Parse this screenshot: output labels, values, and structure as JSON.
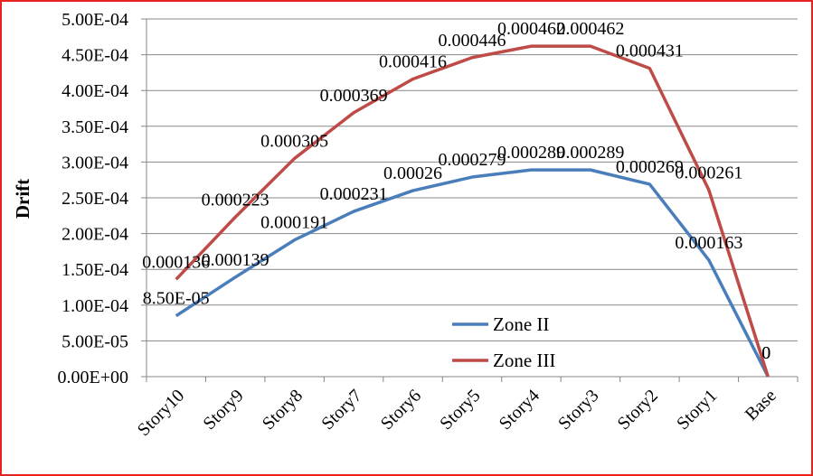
{
  "chart_data": {
    "type": "line",
    "title": "",
    "xlabel": "",
    "ylabel": "Drift",
    "ylim": [
      0,
      0.0005
    ],
    "y_ticks": [
      "0.00E+00",
      "5.00E-05",
      "1.00E-04",
      "1.50E-04",
      "2.00E-04",
      "2.50E-04",
      "3.00E-04",
      "3.50E-04",
      "4.00E-04",
      "4.50E-04",
      "5.00E-04"
    ],
    "categories": [
      "Story10",
      "Story9",
      "Story8",
      "Story7",
      "Story6",
      "Story5",
      "Story4",
      "Story3",
      "Story2",
      "Story1",
      "Base"
    ],
    "grid": true,
    "legend_position": "right",
    "series": [
      {
        "name": "Zone II",
        "color": "#4a7ebb",
        "values": [
          8.5e-05,
          0.000139,
          0.000191,
          0.000231,
          0.00026,
          0.000279,
          0.000289,
          0.000289,
          0.000269,
          0.000163,
          0
        ],
        "labels": [
          "8.50E-05",
          "0.000139",
          "0.000191",
          "0.000231",
          "0.00026",
          "0.000279",
          "0.000289",
          "0.000289",
          "0.000269",
          "0.000163",
          "0"
        ]
      },
      {
        "name": "Zone III",
        "color": "#be4b48",
        "values": [
          0.000136,
          0.000223,
          0.000305,
          0.000369,
          0.000416,
          0.000446,
          0.000462,
          0.000462,
          0.000431,
          0.000261,
          0
        ],
        "labels": [
          "0.000136",
          "0.000223",
          "0.000305",
          "0.000369",
          "0.000416",
          "0.000446",
          "0.000462",
          "0.000462",
          "0.000431",
          "0.000261",
          "0"
        ]
      }
    ]
  }
}
